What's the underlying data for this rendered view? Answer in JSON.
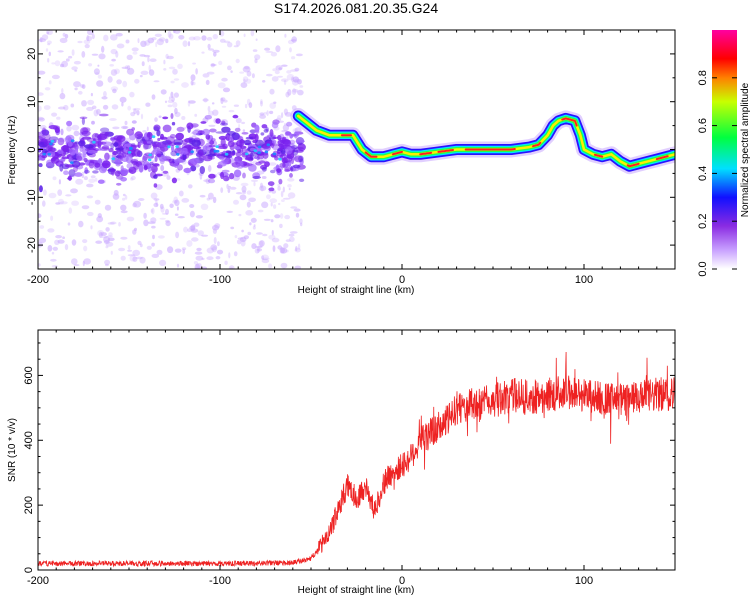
{
  "figure_title": "S174.2026.081.20.35.G24",
  "chart_data": [
    {
      "type": "heatmap",
      "title": "S174.2026.081.20.35.G24",
      "xlabel": "Height of straight line (km)",
      "ylabel": "Frequency (Hz)",
      "xlim": [
        -200,
        150
      ],
      "ylim": [
        -25,
        25
      ],
      "xticks": [
        -200,
        -100,
        0,
        100
      ],
      "yticks": [
        -20,
        -10,
        0,
        10,
        20
      ],
      "colorbar": {
        "label": "Normalized spectral amplitude",
        "range": [
          0,
          1
        ],
        "ticks": [
          "0.0",
          "0.2",
          "0.4",
          "0.6",
          "0.8"
        ],
        "colors": [
          "#ffffff",
          "#8a2be2",
          "#0000ff",
          "#00ffff",
          "#00ff00",
          "#ffff00",
          "#ff0000",
          "#ff00ff"
        ]
      },
      "ridge": {
        "x": [
          -57,
          -52,
          -47,
          -40,
          -33,
          -27,
          -22,
          -17,
          -10,
          -5,
          0,
          5,
          10,
          20,
          30,
          40,
          50,
          60,
          70,
          75,
          80,
          83,
          86,
          90,
          95,
          98,
          100,
          105,
          110,
          115,
          120,
          125,
          130,
          135,
          140,
          145,
          150
        ],
        "freq": [
          7,
          5.5,
          4,
          3,
          3,
          3,
          0,
          -1.5,
          -1.5,
          -1,
          -0.5,
          -1,
          -1,
          -0.5,
          0,
          0,
          0,
          0,
          0.5,
          1,
          3,
          5,
          6,
          6.5,
          6,
          3,
          0,
          -1,
          -1.5,
          -1,
          -2.5,
          -3.5,
          -3,
          -2.5,
          -2,
          -1.5,
          -1
        ]
      },
      "noise_region": {
        "x_range": [
          -200,
          -55
        ],
        "center_freq": 0
      }
    },
    {
      "type": "line",
      "xlabel": "Height of straight line (km)",
      "ylabel": "SNR (10 * v/v)",
      "xlim": [
        -200,
        150
      ],
      "ylim": [
        0,
        740
      ],
      "xticks": [
        -200,
        -100,
        0,
        100
      ],
      "yticks": [
        0,
        200,
        400,
        600
      ],
      "series": [
        {
          "name": "SNR",
          "color": "#ee2222",
          "x": [
            -200,
            -150,
            -100,
            -60,
            -50,
            -40,
            -35,
            -30,
            -25,
            -20,
            -15,
            -10,
            -5,
            0,
            5,
            10,
            15,
            20,
            25,
            30,
            40,
            50,
            60,
            70,
            80,
            90,
            100,
            110,
            120,
            130,
            140,
            150
          ],
          "y": [
            20,
            20,
            20,
            22,
            35,
            110,
            190,
            260,
            220,
            260,
            180,
            270,
            300,
            320,
            350,
            400,
            420,
            440,
            460,
            500,
            510,
            520,
            540,
            530,
            540,
            550,
            540,
            530,
            520,
            530,
            540,
            545
          ]
        }
      ]
    }
  ]
}
